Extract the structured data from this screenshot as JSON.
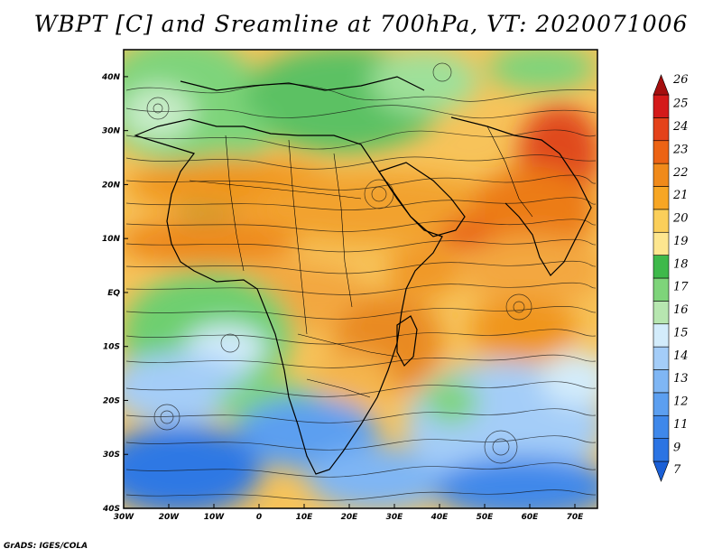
{
  "title": "WBPT [C] and Sreamline at 700hPa, VT: 2020071006",
  "credit": "GrADS: IGES/COLA",
  "map": {
    "lon_range": [
      -30,
      75
    ],
    "lat_range": [
      -40,
      45
    ],
    "lon_ticks": [
      "30W",
      "20W",
      "10W",
      "0",
      "10E",
      "20E",
      "30E",
      "40E",
      "50E",
      "60E",
      "70E"
    ],
    "lat_ticks": [
      "40S",
      "30S",
      "20S",
      "10S",
      "EQ",
      "10N",
      "20N",
      "30N",
      "40N"
    ]
  },
  "colorbar": {
    "labels": [
      "7",
      "9",
      "11",
      "12",
      "13",
      "14",
      "15",
      "16",
      "17",
      "18",
      "19",
      "20",
      "21",
      "22",
      "23",
      "24",
      "25",
      "26"
    ],
    "colors": [
      "#1a5fd6",
      "#2b74e3",
      "#3f88ea",
      "#5c9ff0",
      "#7fb6f4",
      "#a4cdf8",
      "#d3ecfb",
      "#b7e6b0",
      "#7ed47a",
      "#3eb94a",
      "#fde68f",
      "#fbcf5a",
      "#f7a624",
      "#f08a1a",
      "#ec6314",
      "#e4421a",
      "#d41a1a",
      "#a50f0f"
    ]
  }
}
